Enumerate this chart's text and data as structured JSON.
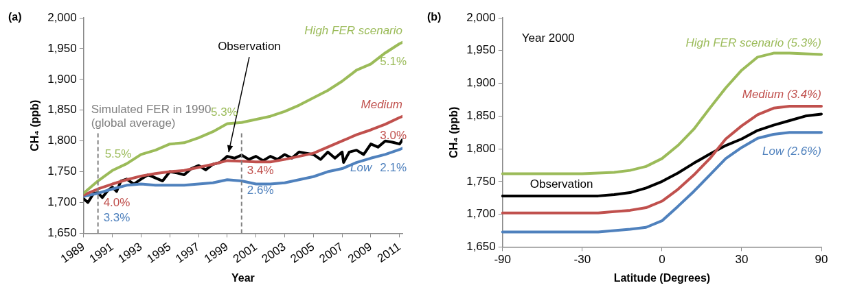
{
  "chart_data": [
    {
      "type": "line",
      "title": "(a)",
      "xlabel": "Year",
      "ylabel": "CH₄ (ppb)",
      "xlim": [
        1989,
        2011.2
      ],
      "xticks": [
        1989,
        1991,
        1993,
        1995,
        1997,
        1999,
        2001,
        2003,
        2005,
        2007,
        2009,
        2011
      ],
      "ylim": [
        1650,
        2000
      ],
      "yticks": [
        {
          "value": 1650,
          "label": "1,650"
        },
        {
          "value": 1700,
          "label": "1,700"
        },
        {
          "value": 1750,
          "label": "1,750"
        },
        {
          "value": 1800,
          "label": "1,800"
        },
        {
          "value": 1850,
          "label": "1,850"
        },
        {
          "value": 1900,
          "label": "1,900"
        },
        {
          "value": 1950,
          "label": "1,950"
        },
        {
          "value": 2000,
          "label": "2,000"
        }
      ],
      "series": [
        {
          "name": "High FER scenario",
          "color": "#9bbb59",
          "x": [
            1989,
            1990,
            1991,
            1992,
            1993,
            1994,
            1995,
            1996,
            1997,
            1998,
            1999,
            2000,
            2001,
            2002,
            2003,
            2004,
            2005,
            2006,
            2007,
            2008,
            2009,
            2010,
            2011,
            2011.2
          ],
          "values": [
            1715,
            1735,
            1752,
            1763,
            1778,
            1785,
            1795,
            1797,
            1805,
            1815,
            1828,
            1830,
            1835,
            1840,
            1848,
            1858,
            1870,
            1882,
            1897,
            1915,
            1925,
            1943,
            1958,
            1960
          ]
        },
        {
          "name": "Medium",
          "color": "#c0504d",
          "x": [
            1989,
            1990,
            1991,
            1992,
            1993,
            1994,
            1995,
            1996,
            1997,
            1998,
            1999,
            2000,
            2001,
            2002,
            2003,
            2004,
            2005,
            2006,
            2007,
            2008,
            2009,
            2010,
            2011,
            2011.2
          ],
          "values": [
            1712,
            1722,
            1730,
            1737,
            1743,
            1747,
            1750,
            1752,
            1757,
            1762,
            1768,
            1767,
            1766,
            1766,
            1770,
            1775,
            1780,
            1790,
            1800,
            1810,
            1818,
            1827,
            1838,
            1840
          ]
        },
        {
          "name": "Low",
          "color": "#4f81bd",
          "x": [
            1989,
            1990,
            1991,
            1992,
            1993,
            1994,
            1995,
            1996,
            1997,
            1998,
            1999,
            2000,
            2001,
            2002,
            2003,
            2004,
            2005,
            2006,
            2007,
            2008,
            2009,
            2010,
            2011,
            2011.2
          ],
          "values": [
            1710,
            1715,
            1722,
            1728,
            1730,
            1728,
            1728,
            1728,
            1730,
            1732,
            1737,
            1735,
            1730,
            1730,
            1732,
            1737,
            1742,
            1750,
            1755,
            1765,
            1772,
            1778,
            1786,
            1788
          ]
        },
        {
          "color": "#000000",
          "x": [
            1989,
            1989.3,
            1989.7,
            1990,
            1990.3,
            1990.7,
            1991,
            1991.3,
            1991.6,
            1992,
            1992.5,
            1993,
            1993.5,
            1994,
            1994.5,
            1995,
            1995.5,
            1996,
            1996.5,
            1997,
            1997.5,
            1998,
            1998.5,
            1999,
            1999.5,
            2000,
            2000.5,
            2001,
            2001.5,
            2002,
            2002.5,
            2003,
            2003.5,
            2004,
            2004.5,
            2005,
            2005.5,
            2006,
            2006.5,
            2007,
            2007.1,
            2007.5,
            2008,
            2008.5,
            2009,
            2009.5,
            2010,
            2010.5,
            2011,
            2011.2
          ],
          "values": [
            1706,
            1700,
            1715,
            1716,
            1708,
            1720,
            1725,
            1718,
            1735,
            1738,
            1730,
            1738,
            1745,
            1740,
            1735,
            1750,
            1748,
            1745,
            1755,
            1760,
            1753,
            1762,
            1765,
            1775,
            1772,
            1777,
            1770,
            1775,
            1768,
            1775,
            1770,
            1778,
            1772,
            1782,
            1780,
            1778,
            1770,
            1782,
            1772,
            1782,
            1765,
            1782,
            1785,
            1778,
            1795,
            1790,
            1800,
            1798,
            1795,
            1802
          ]
        }
      ],
      "ref_lines": [
        {
          "axis": "x",
          "value": 1990,
          "label": "Simulated FER in 1990 (global average)",
          "color": "#808080",
          "line_style": "dashed"
        },
        {
          "axis": "x",
          "value": 2000,
          "color": "#808080",
          "line_style": "dashed"
        }
      ],
      "annotations": [
        {
          "text": "Observation",
          "x": 1999.1,
          "y": 1776
        },
        {
          "text": "5.5%",
          "x": 1990,
          "y": 1735
        },
        {
          "text": "4.0%",
          "x": 1990,
          "y": 1722
        },
        {
          "text": "3.3%",
          "x": 1990,
          "y": 1715
        },
        {
          "text": "5.3%",
          "x": 2000,
          "y": 1830
        },
        {
          "text": "3.4%",
          "x": 2000,
          "y": 1767
        },
        {
          "text": "2.6%",
          "x": 2000,
          "y": 1735
        },
        {
          "text": "5.1%",
          "x": 2011.2,
          "y": 1960
        },
        {
          "text": "3.0%",
          "x": 2011.2,
          "y": 1840
        },
        {
          "text": "2.1%",
          "x": 2011.2,
          "y": 1788
        }
      ]
    },
    {
      "type": "line",
      "title": "(b)",
      "xlabel": "Latitude (Degrees)",
      "ylabel": "CH₄ (ppb)",
      "ylim": [
        1650,
        2000
      ],
      "yticks": [
        {
          "value": 1650,
          "label": "1,650"
        },
        {
          "value": 1700,
          "label": "1,700"
        },
        {
          "value": 1750,
          "label": "1,750"
        },
        {
          "value": 1800,
          "label": "1,800"
        },
        {
          "value": 1850,
          "label": "1,850"
        },
        {
          "value": 1900,
          "label": "1,900"
        },
        {
          "value": 1950,
          "label": "1,950"
        },
        {
          "value": 2000,
          "label": "2,000"
        }
      ],
      "categories": [
        "-90",
        null,
        null,
        null,
        null,
        "-30",
        null,
        null,
        null,
        null,
        "0",
        null,
        null,
        null,
        null,
        "30",
        null,
        null,
        null,
        null,
        "90"
      ],
      "series": [
        {
          "name": "High FER scenario (5.3%)",
          "color": "#9bbb59",
          "values": [
            1762,
            1762,
            1762,
            1762,
            1762,
            1762,
            1763,
            1764,
            1767,
            1773,
            1785,
            1805,
            1830,
            1862,
            1893,
            1920,
            1940,
            1946,
            1946,
            1945,
            1944
          ]
        },
        {
          "name": "Medium (3.4%)",
          "color": "#c0504d",
          "values": [
            1702,
            1702,
            1702,
            1702,
            1702,
            1702,
            1702,
            1704,
            1706,
            1710,
            1720,
            1738,
            1760,
            1785,
            1815,
            1835,
            1852,
            1862,
            1865,
            1865,
            1865
          ]
        },
        {
          "name": "Observation",
          "color": "#000000",
          "values": [
            1728,
            1728,
            1728,
            1728,
            1728,
            1728,
            1728,
            1730,
            1733,
            1740,
            1750,
            1763,
            1778,
            1792,
            1805,
            1815,
            1828,
            1836,
            1843,
            1850,
            1853
          ]
        },
        {
          "name": "Low (2.6%)",
          "color": "#4f81bd",
          "values": [
            1673,
            1673,
            1673,
            1673,
            1673,
            1673,
            1673,
            1675,
            1677,
            1680,
            1690,
            1712,
            1735,
            1760,
            1785,
            1802,
            1816,
            1822,
            1825,
            1825,
            1825
          ]
        }
      ],
      "annotations": [
        "Year 2000"
      ]
    }
  ]
}
